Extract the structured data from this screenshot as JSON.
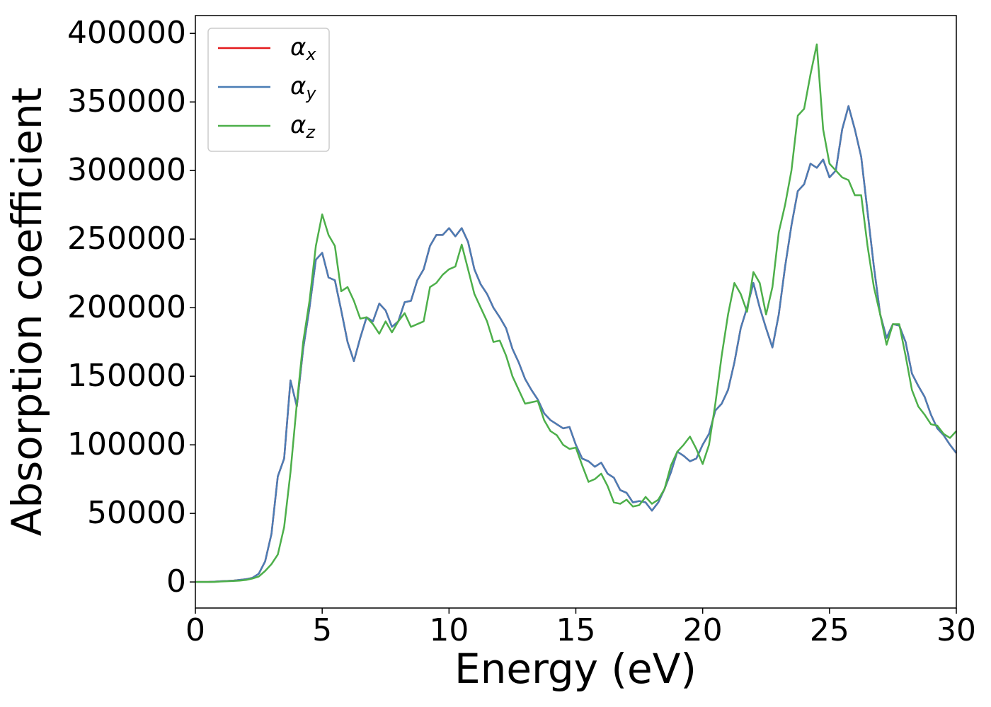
{
  "chart_data": {
    "type": "line",
    "xlabel": "Energy (eV)",
    "ylabel": "Absorption coefficient",
    "xlim": [
      0,
      30
    ],
    "ylim": [
      -19000,
      413000
    ],
    "xticks": [
      0,
      5,
      10,
      15,
      20,
      25,
      30
    ],
    "yticks": [
      0,
      50000,
      100000,
      150000,
      200000,
      250000,
      300000,
      350000,
      400000
    ],
    "legend": "upper left",
    "x": [
      0,
      0.25,
      0.5,
      0.75,
      1,
      1.25,
      1.5,
      1.75,
      2,
      2.25,
      2.5,
      2.75,
      3,
      3.25,
      3.5,
      3.75,
      4,
      4.25,
      4.5,
      4.75,
      5,
      5.25,
      5.5,
      5.75,
      6,
      6.25,
      6.5,
      6.75,
      7,
      7.25,
      7.5,
      7.75,
      8,
      8.25,
      8.5,
      8.75,
      9,
      9.25,
      9.5,
      9.75,
      10,
      10.25,
      10.5,
      10.75,
      11,
      11.25,
      11.5,
      11.75,
      12,
      12.25,
      12.5,
      12.75,
      13,
      13.25,
      13.5,
      13.75,
      14,
      14.25,
      14.5,
      14.75,
      15,
      15.25,
      15.5,
      15.75,
      16,
      16.25,
      16.5,
      16.75,
      17,
      17.25,
      17.5,
      17.75,
      18,
      18.25,
      18.5,
      18.75,
      19,
      19.25,
      19.5,
      19.75,
      20,
      20.25,
      20.5,
      20.75,
      21,
      21.25,
      21.5,
      21.75,
      22,
      22.25,
      22.5,
      22.75,
      23,
      23.25,
      23.5,
      23.75,
      24,
      24.25,
      24.5,
      24.75,
      25,
      25.25,
      25.5,
      25.75,
      26,
      26.25,
      26.5,
      26.75,
      27,
      27.25,
      27.5,
      27.75,
      28,
      28.25,
      28.5,
      28.75,
      29,
      29.25,
      29.5,
      29.75,
      30
    ],
    "series": [
      {
        "name": "αx",
        "color": "#e41a1c",
        "values": [
          0,
          0,
          0,
          200,
          500,
          700,
          1000,
          1500,
          2000,
          3000,
          6000,
          15000,
          35000,
          77000,
          90000,
          147000,
          128000,
          170000,
          200000,
          235000,
          240000,
          222000,
          220000,
          198000,
          175000,
          161000,
          178000,
          193000,
          190000,
          203000,
          198000,
          186000,
          190000,
          204000,
          205000,
          220000,
          228000,
          245000,
          253000,
          253000,
          258000,
          252000,
          258000,
          248000,
          228000,
          217000,
          210000,
          200000,
          193000,
          185000,
          170000,
          160000,
          148000,
          140000,
          133000,
          123000,
          118000,
          115000,
          112000,
          113000,
          100000,
          90000,
          88000,
          84000,
          87000,
          79000,
          76000,
          67000,
          65000,
          58000,
          59000,
          58000,
          52000,
          58000,
          68000,
          80000,
          95000,
          92000,
          88000,
          90000,
          100000,
          108000,
          125000,
          130000,
          140000,
          160000,
          185000,
          200000,
          218000,
          200000,
          185000,
          171000,
          195000,
          230000,
          260000,
          285000,
          290000,
          305000,
          302000,
          308000,
          295000,
          300000,
          330000,
          347000,
          330000,
          310000,
          270000,
          230000,
          195000,
          178000,
          188000,
          187000,
          175000,
          152000,
          143000,
          135000,
          122000,
          112000,
          107000,
          100000,
          94000
        ]
      },
      {
        "name": "αy",
        "color": "#4a7db5",
        "values": [
          0,
          0,
          0,
          200,
          500,
          700,
          1000,
          1500,
          2000,
          3000,
          6000,
          15000,
          35000,
          77000,
          90000,
          147000,
          128000,
          170000,
          200000,
          235000,
          240000,
          222000,
          220000,
          198000,
          175000,
          161000,
          178000,
          193000,
          190000,
          203000,
          198000,
          186000,
          190000,
          204000,
          205000,
          220000,
          228000,
          245000,
          253000,
          253000,
          258000,
          252000,
          258000,
          248000,
          228000,
          217000,
          210000,
          200000,
          193000,
          185000,
          170000,
          160000,
          148000,
          140000,
          133000,
          123000,
          118000,
          115000,
          112000,
          113000,
          100000,
          90000,
          88000,
          84000,
          87000,
          79000,
          76000,
          67000,
          65000,
          58000,
          59000,
          58000,
          52000,
          58000,
          68000,
          80000,
          95000,
          92000,
          88000,
          90000,
          100000,
          108000,
          125000,
          130000,
          140000,
          160000,
          185000,
          200000,
          218000,
          200000,
          185000,
          171000,
          195000,
          230000,
          260000,
          285000,
          290000,
          305000,
          302000,
          308000,
          295000,
          300000,
          330000,
          347000,
          330000,
          310000,
          270000,
          230000,
          195000,
          178000,
          188000,
          187000,
          175000,
          152000,
          143000,
          135000,
          122000,
          112000,
          107000,
          100000,
          94000
        ]
      },
      {
        "name": "αz",
        "color": "#4daf4a",
        "values": [
          0,
          0,
          0,
          0,
          300,
          500,
          700,
          1000,
          1500,
          2500,
          4000,
          8000,
          13000,
          20000,
          40000,
          80000,
          130000,
          175000,
          205000,
          245000,
          268000,
          253000,
          245000,
          212000,
          215000,
          205000,
          192000,
          193000,
          188000,
          181000,
          190000,
          182000,
          190000,
          196000,
          186000,
          188000,
          190000,
          215000,
          218000,
          224000,
          228000,
          230000,
          246000,
          228000,
          210000,
          200000,
          190000,
          175000,
          176000,
          165000,
          150000,
          140000,
          130000,
          131000,
          132000,
          118000,
          110000,
          107000,
          100000,
          97000,
          98000,
          85000,
          73000,
          75000,
          79000,
          70000,
          58000,
          57000,
          60000,
          55000,
          56000,
          62000,
          57000,
          60000,
          68000,
          85000,
          95000,
          100000,
          106000,
          97000,
          86000,
          100000,
          130000,
          165000,
          195000,
          218000,
          210000,
          197000,
          226000,
          218000,
          195000,
          215000,
          255000,
          275000,
          300000,
          340000,
          345000,
          370000,
          392000,
          330000,
          305000,
          300000,
          295000,
          293000,
          282000,
          282000,
          245000,
          215000,
          195000,
          173000,
          188000,
          188000,
          165000,
          140000,
          128000,
          122000,
          115000,
          114000,
          108000,
          105000,
          110000
        ]
      }
    ]
  }
}
